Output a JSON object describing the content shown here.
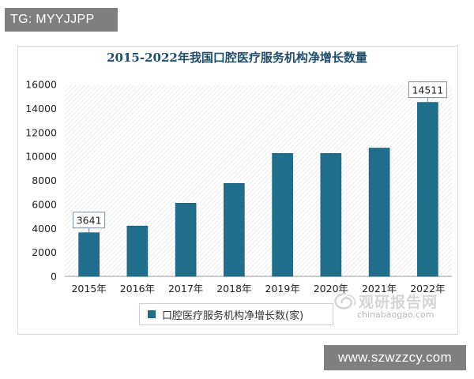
{
  "tag_text": "TG: MYYJJPP",
  "site_text": "www.szwzzcy.com",
  "watermark": {
    "brand": "观研报告网",
    "url": "chinabaogao.com"
  },
  "colors": {
    "bar": "#1f6e8c",
    "bar_stroke": "#0f5a78",
    "title": "#1f4e6b",
    "gray_tag": "#7f7f7f"
  },
  "chart_data": {
    "type": "bar",
    "title": "2015-2022年我国口腔医疗服务机构净增长数量",
    "categories": [
      "2015年",
      "2016年",
      "2017年",
      "2018年",
      "2019年",
      "2020年",
      "2021年",
      "2022年"
    ],
    "series": [
      {
        "name": "口腔医疗服务机构净增长数(家)",
        "values": [
          3641,
          4200,
          6100,
          7750,
          10250,
          10250,
          10700,
          14511
        ]
      }
    ],
    "data_labels": [
      {
        "category": "2015年",
        "text": "3641"
      },
      {
        "category": "2022年",
        "text": "14511"
      }
    ],
    "ylim": [
      0,
      16000
    ],
    "yticks": [
      "0",
      "2000",
      "4000",
      "6000",
      "8000",
      "10000",
      "12000",
      "14000",
      "16000"
    ],
    "xlabel": "",
    "ylabel": "",
    "grid": false,
    "legend": "bottom"
  }
}
